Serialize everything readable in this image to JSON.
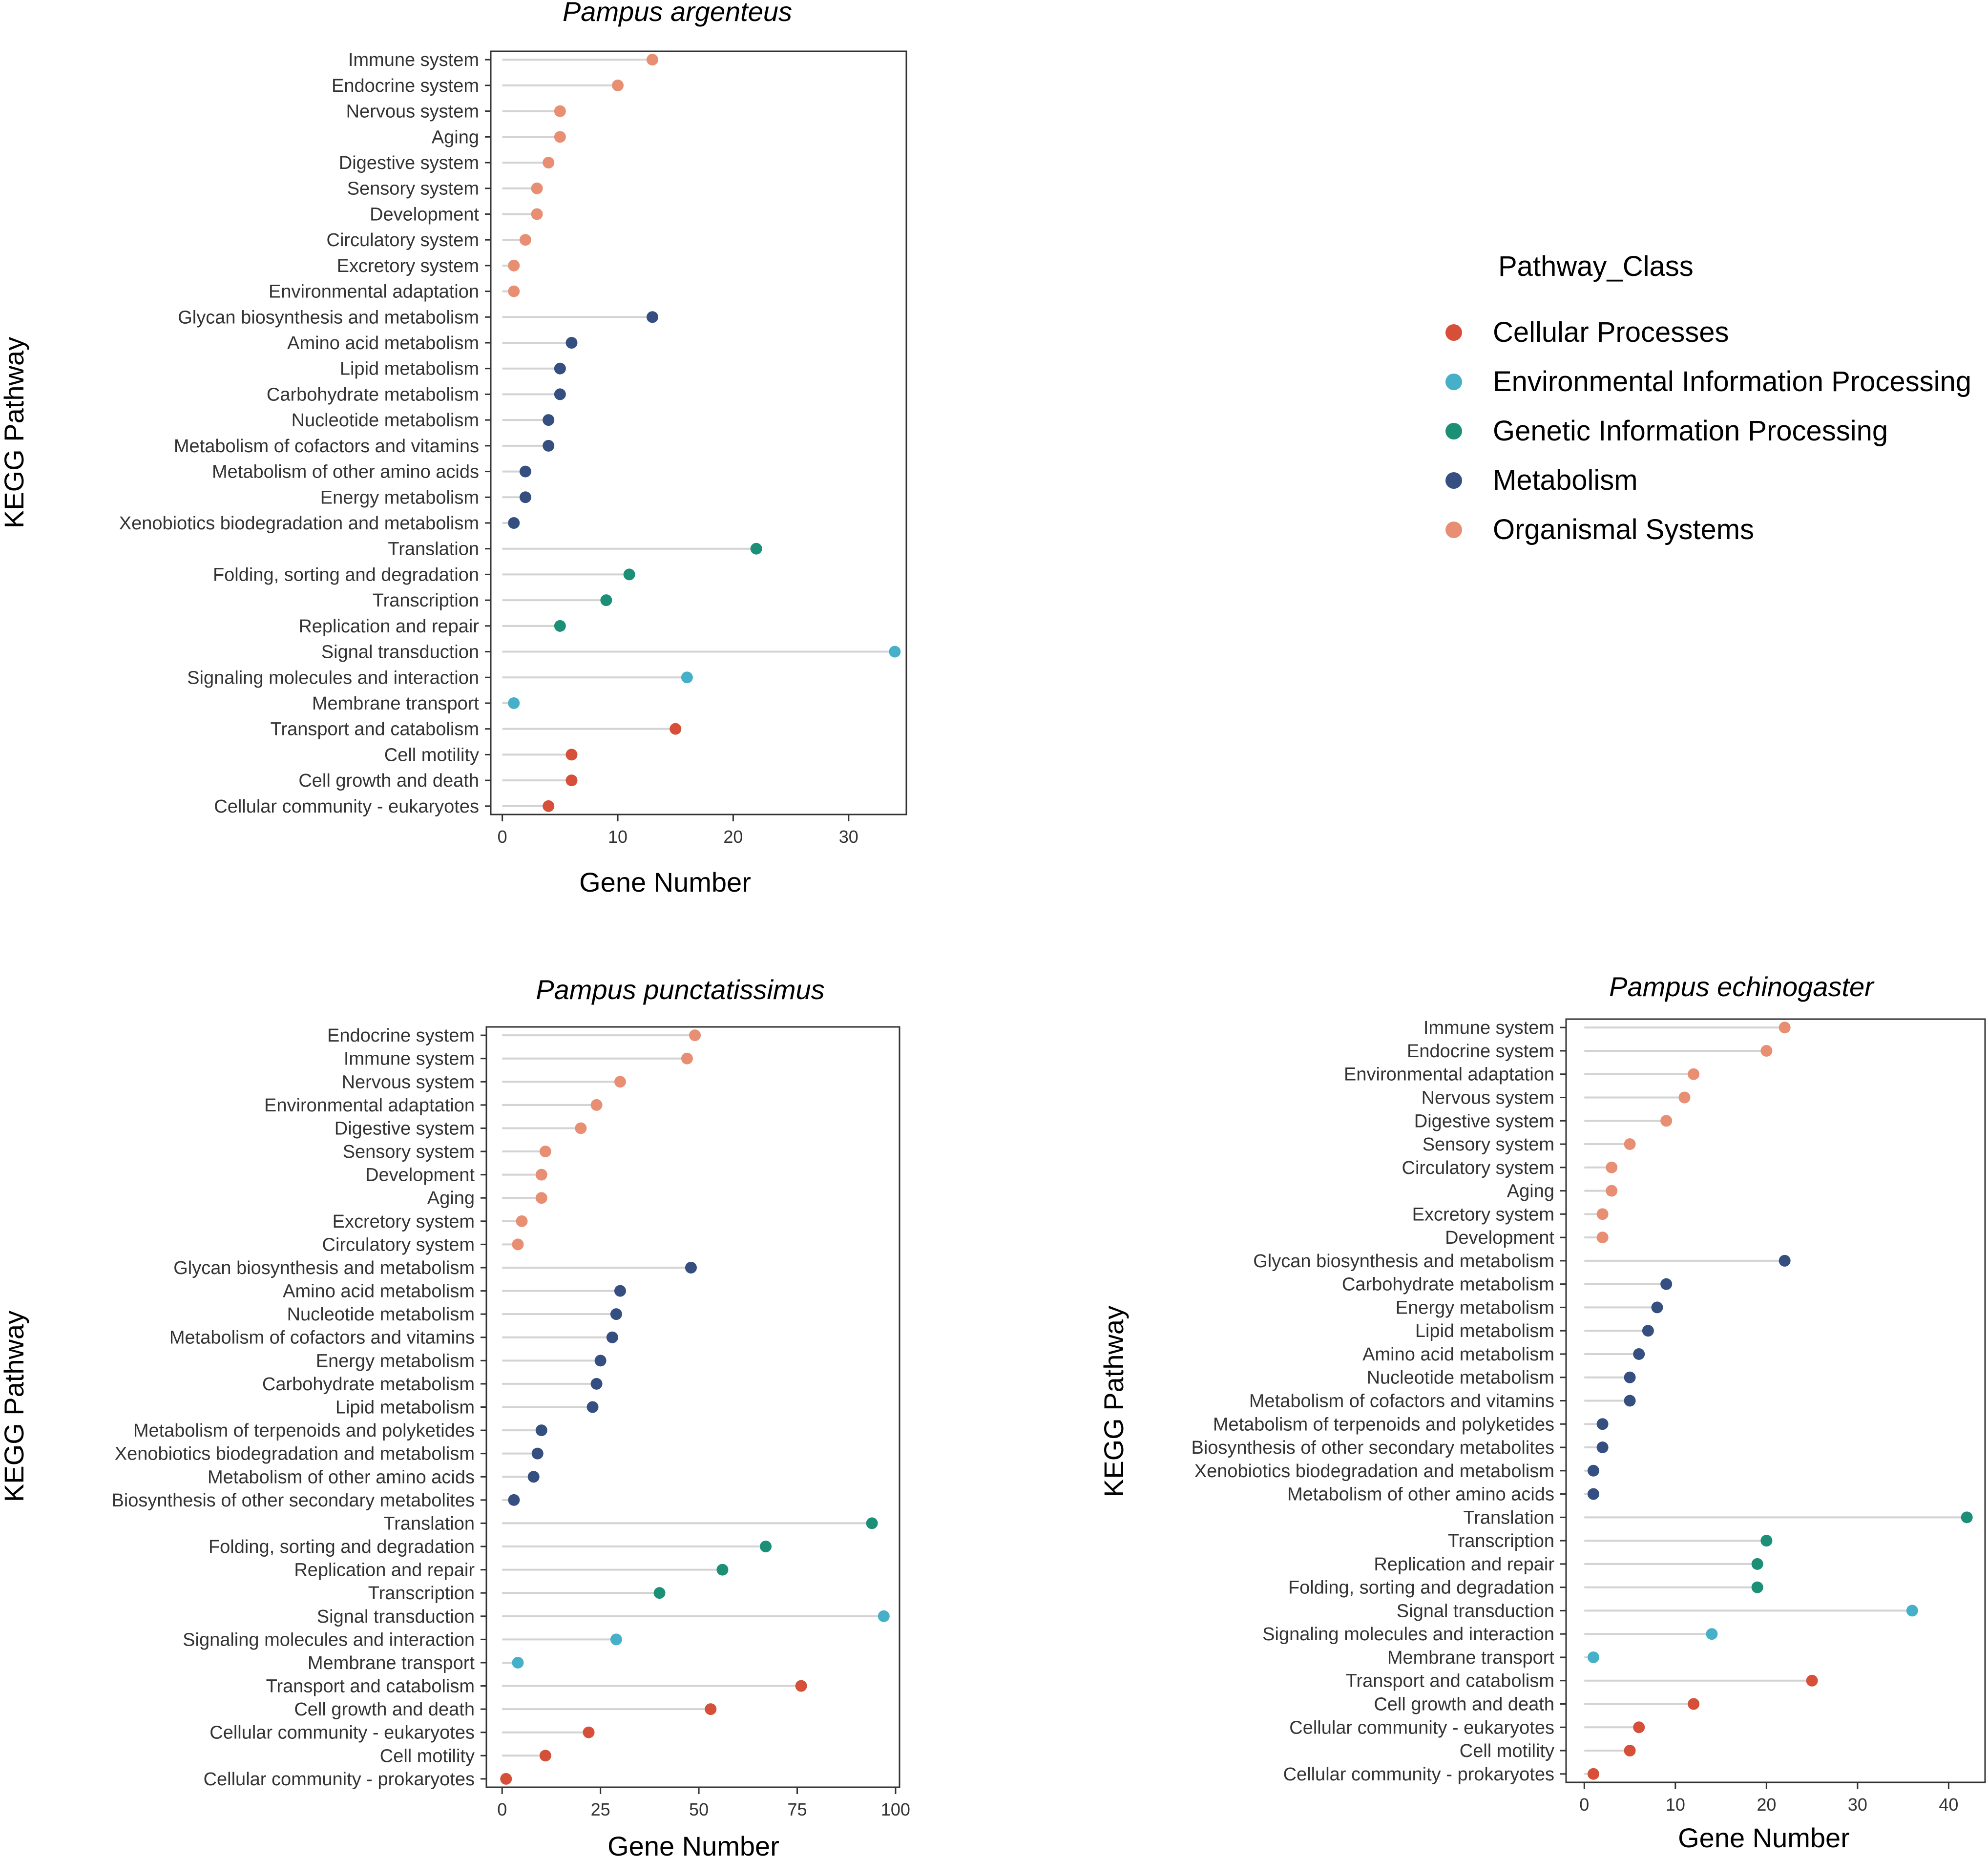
{
  "colors": {
    "Cellular Processes": "#d64f38",
    "Environmental Information Processing": "#45b0c8",
    "Genetic Information Processing": "#1b9077",
    "Metabolism": "#344f80",
    "Organismal Systems": "#e88f73"
  },
  "legend": {
    "title": "Pathway_Class",
    "entries": [
      "Cellular Processes",
      "Environmental Information Processing",
      "Genetic Information Processing",
      "Metabolism",
      "Organismal Systems"
    ]
  },
  "chart_data": [
    {
      "type": "lollipop",
      "title": "Pampus argenteus",
      "xlabel": "Gene Number",
      "ylabel": "KEGG Pathway",
      "xlim": [
        -1,
        35
      ],
      "xticks": [
        0,
        10,
        20,
        30
      ],
      "points": [
        {
          "label": "Immune system",
          "value": 13,
          "class": "Organismal Systems"
        },
        {
          "label": "Endocrine system",
          "value": 10,
          "class": "Organismal Systems"
        },
        {
          "label": "Nervous system",
          "value": 5,
          "class": "Organismal Systems"
        },
        {
          "label": "Aging",
          "value": 5,
          "class": "Organismal Systems"
        },
        {
          "label": "Digestive system",
          "value": 4,
          "class": "Organismal Systems"
        },
        {
          "label": "Sensory system",
          "value": 3,
          "class": "Organismal Systems"
        },
        {
          "label": "Development",
          "value": 3,
          "class": "Organismal Systems"
        },
        {
          "label": "Circulatory system",
          "value": 2,
          "class": "Organismal Systems"
        },
        {
          "label": "Excretory system",
          "value": 1,
          "class": "Organismal Systems"
        },
        {
          "label": "Environmental adaptation",
          "value": 1,
          "class": "Organismal Systems"
        },
        {
          "label": "Glycan biosynthesis and metabolism",
          "value": 13,
          "class": "Metabolism"
        },
        {
          "label": "Amino acid metabolism",
          "value": 6,
          "class": "Metabolism"
        },
        {
          "label": "Lipid metabolism",
          "value": 5,
          "class": "Metabolism"
        },
        {
          "label": "Carbohydrate metabolism",
          "value": 5,
          "class": "Metabolism"
        },
        {
          "label": "Nucleotide metabolism",
          "value": 4,
          "class": "Metabolism"
        },
        {
          "label": "Metabolism of cofactors and vitamins",
          "value": 4,
          "class": "Metabolism"
        },
        {
          "label": "Metabolism of other amino acids",
          "value": 2,
          "class": "Metabolism"
        },
        {
          "label": "Energy metabolism",
          "value": 2,
          "class": "Metabolism"
        },
        {
          "label": "Xenobiotics biodegradation and metabolism",
          "value": 1,
          "class": "Metabolism"
        },
        {
          "label": "Translation",
          "value": 22,
          "class": "Genetic Information Processing"
        },
        {
          "label": "Folding, sorting and degradation",
          "value": 11,
          "class": "Genetic Information Processing"
        },
        {
          "label": "Transcription",
          "value": 9,
          "class": "Genetic Information Processing"
        },
        {
          "label": "Replication and repair",
          "value": 5,
          "class": "Genetic Information Processing"
        },
        {
          "label": "Signal transduction",
          "value": 34,
          "class": "Environmental Information Processing"
        },
        {
          "label": "Signaling molecules and interaction",
          "value": 16,
          "class": "Environmental Information Processing"
        },
        {
          "label": "Membrane transport",
          "value": 1,
          "class": "Environmental Information Processing"
        },
        {
          "label": "Transport and catabolism",
          "value": 15,
          "class": "Cellular Processes"
        },
        {
          "label": "Cell motility",
          "value": 6,
          "class": "Cellular Processes"
        },
        {
          "label": "Cell growth and death",
          "value": 6,
          "class": "Cellular Processes"
        },
        {
          "label": "Cellular community - eukaryotes",
          "value": 4,
          "class": "Cellular Processes"
        }
      ]
    },
    {
      "type": "lollipop",
      "title": "Pampus punctatissimus",
      "xlabel": "Gene Number",
      "ylabel": "KEGG Pathway",
      "xlim": [
        -4,
        101
      ],
      "xticks": [
        0,
        25,
        50,
        75,
        100
      ],
      "points": [
        {
          "label": "Endocrine system",
          "value": 49,
          "class": "Organismal Systems"
        },
        {
          "label": "Immune system",
          "value": 47,
          "class": "Organismal Systems"
        },
        {
          "label": "Nervous system",
          "value": 30,
          "class": "Organismal Systems"
        },
        {
          "label": "Environmental adaptation",
          "value": 24,
          "class": "Organismal Systems"
        },
        {
          "label": "Digestive system",
          "value": 20,
          "class": "Organismal Systems"
        },
        {
          "label": "Sensory system",
          "value": 11,
          "class": "Organismal Systems"
        },
        {
          "label": "Development",
          "value": 10,
          "class": "Organismal Systems"
        },
        {
          "label": "Aging",
          "value": 10,
          "class": "Organismal Systems"
        },
        {
          "label": "Excretory system",
          "value": 5,
          "class": "Organismal Systems"
        },
        {
          "label": "Circulatory system",
          "value": 4,
          "class": "Organismal Systems"
        },
        {
          "label": "Glycan biosynthesis and metabolism",
          "value": 48,
          "class": "Metabolism"
        },
        {
          "label": "Amino acid metabolism",
          "value": 30,
          "class": "Metabolism"
        },
        {
          "label": "Nucleotide metabolism",
          "value": 29,
          "class": "Metabolism"
        },
        {
          "label": "Metabolism of cofactors and vitamins",
          "value": 28,
          "class": "Metabolism"
        },
        {
          "label": "Energy metabolism",
          "value": 25,
          "class": "Metabolism"
        },
        {
          "label": "Carbohydrate metabolism",
          "value": 24,
          "class": "Metabolism"
        },
        {
          "label": "Lipid metabolism",
          "value": 23,
          "class": "Metabolism"
        },
        {
          "label": "Metabolism of terpenoids and polyketides",
          "value": 10,
          "class": "Metabolism"
        },
        {
          "label": "Xenobiotics biodegradation and metabolism",
          "value": 9,
          "class": "Metabolism"
        },
        {
          "label": "Metabolism of other amino acids",
          "value": 8,
          "class": "Metabolism"
        },
        {
          "label": "Biosynthesis of other secondary metabolites",
          "value": 3,
          "class": "Metabolism"
        },
        {
          "label": "Translation",
          "value": 94,
          "class": "Genetic Information Processing"
        },
        {
          "label": "Folding, sorting and degradation",
          "value": 67,
          "class": "Genetic Information Processing"
        },
        {
          "label": "Replication and repair",
          "value": 56,
          "class": "Genetic Information Processing"
        },
        {
          "label": "Transcription",
          "value": 40,
          "class": "Genetic Information Processing"
        },
        {
          "label": "Signal transduction",
          "value": 97,
          "class": "Environmental Information Processing"
        },
        {
          "label": "Signaling molecules and interaction",
          "value": 29,
          "class": "Environmental Information Processing"
        },
        {
          "label": "Membrane transport",
          "value": 4,
          "class": "Environmental Information Processing"
        },
        {
          "label": "Transport and catabolism",
          "value": 76,
          "class": "Cellular Processes"
        },
        {
          "label": "Cell growth and death",
          "value": 53,
          "class": "Cellular Processes"
        },
        {
          "label": "Cellular community - eukaryotes",
          "value": 22,
          "class": "Cellular Processes"
        },
        {
          "label": "Cell motility",
          "value": 11,
          "class": "Cellular Processes"
        },
        {
          "label": "Cellular community - prokaryotes",
          "value": 1,
          "class": "Cellular Processes"
        }
      ]
    },
    {
      "type": "lollipop",
      "title": "Pampus echinogaster",
      "xlabel": "Gene Number",
      "ylabel": "KEGG Pathway",
      "xlim": [
        -2,
        44
      ],
      "xticks": [
        0,
        10,
        20,
        30,
        40
      ],
      "points": [
        {
          "label": "Immune system",
          "value": 22,
          "class": "Organismal Systems"
        },
        {
          "label": "Endocrine system",
          "value": 20,
          "class": "Organismal Systems"
        },
        {
          "label": "Environmental adaptation",
          "value": 12,
          "class": "Organismal Systems"
        },
        {
          "label": "Nervous system",
          "value": 11,
          "class": "Organismal Systems"
        },
        {
          "label": "Digestive system",
          "value": 9,
          "class": "Organismal Systems"
        },
        {
          "label": "Sensory system",
          "value": 5,
          "class": "Organismal Systems"
        },
        {
          "label": "Circulatory system",
          "value": 3,
          "class": "Organismal Systems"
        },
        {
          "label": "Aging",
          "value": 3,
          "class": "Organismal Systems"
        },
        {
          "label": "Excretory system",
          "value": 2,
          "class": "Organismal Systems"
        },
        {
          "label": "Development",
          "value": 2,
          "class": "Organismal Systems"
        },
        {
          "label": "Glycan biosynthesis and metabolism",
          "value": 22,
          "class": "Metabolism"
        },
        {
          "label": "Carbohydrate metabolism",
          "value": 9,
          "class": "Metabolism"
        },
        {
          "label": "Energy metabolism",
          "value": 8,
          "class": "Metabolism"
        },
        {
          "label": "Lipid metabolism",
          "value": 7,
          "class": "Metabolism"
        },
        {
          "label": "Amino acid metabolism",
          "value": 6,
          "class": "Metabolism"
        },
        {
          "label": "Nucleotide metabolism",
          "value": 5,
          "class": "Metabolism"
        },
        {
          "label": "Metabolism of cofactors and vitamins",
          "value": 5,
          "class": "Metabolism"
        },
        {
          "label": "Metabolism of terpenoids and polyketides",
          "value": 2,
          "class": "Metabolism"
        },
        {
          "label": "Biosynthesis of other secondary metabolites",
          "value": 2,
          "class": "Metabolism"
        },
        {
          "label": "Xenobiotics biodegradation and metabolism",
          "value": 1,
          "class": "Metabolism"
        },
        {
          "label": "Metabolism of other amino acids",
          "value": 1,
          "class": "Metabolism"
        },
        {
          "label": "Translation",
          "value": 42,
          "class": "Genetic Information Processing"
        },
        {
          "label": "Transcription",
          "value": 20,
          "class": "Genetic Information Processing"
        },
        {
          "label": "Replication and repair",
          "value": 19,
          "class": "Genetic Information Processing"
        },
        {
          "label": "Folding, sorting and degradation",
          "value": 19,
          "class": "Genetic Information Processing"
        },
        {
          "label": "Signal transduction",
          "value": 36,
          "class": "Environmental Information Processing"
        },
        {
          "label": "Signaling molecules and interaction",
          "value": 14,
          "class": "Environmental Information Processing"
        },
        {
          "label": "Membrane transport",
          "value": 1,
          "class": "Environmental Information Processing"
        },
        {
          "label": "Transport and catabolism",
          "value": 25,
          "class": "Cellular Processes"
        },
        {
          "label": "Cell growth and death",
          "value": 12,
          "class": "Cellular Processes"
        },
        {
          "label": "Cellular community - eukaryotes",
          "value": 6,
          "class": "Cellular Processes"
        },
        {
          "label": "Cell motility",
          "value": 5,
          "class": "Cellular Processes"
        },
        {
          "label": "Cellular community - prokaryotes",
          "value": 1,
          "class": "Cellular Processes"
        }
      ]
    }
  ]
}
